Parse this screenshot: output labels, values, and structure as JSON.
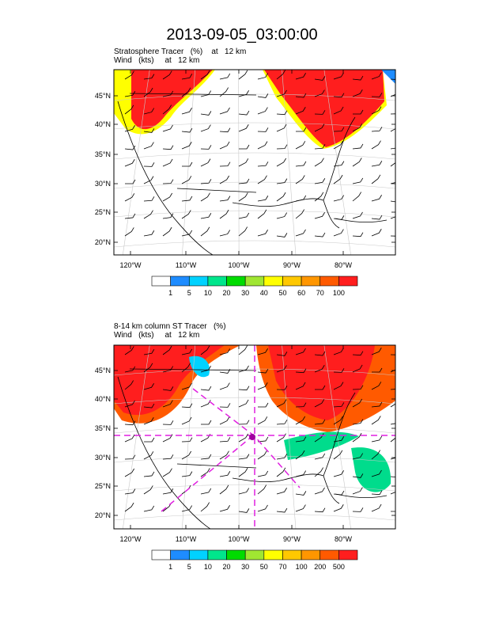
{
  "title": "2013-09-05_03:00:00",
  "colors": {
    "frame": "#000000",
    "grid": "#c8c8c8",
    "coast": "#000000",
    "barb": "#000000",
    "trop_line": "#e020e0"
  },
  "panels": [
    {
      "subtitle_line1": "Stratosphere Tracer   (%)    at   12 km",
      "subtitle_line2": "Wind   (kts)     at   12 km",
      "lat_labels": [
        "45°N",
        "40°N",
        "35°N",
        "30°N",
        "25°N",
        "20°N"
      ],
      "lon_labels": [
        "120°W",
        "110°W",
        "100°W",
        "90°W",
        "80°W"
      ],
      "colorbar_labels": [
        "1",
        "5",
        "10",
        "20",
        "30",
        "40",
        "50",
        "60",
        "70",
        "100"
      ],
      "colorbar_colors": [
        "#ffffff",
        "#1e8cff",
        "#00d2ff",
        "#00e68c",
        "#00dc00",
        "#a0e632",
        "#ffff00",
        "#ffc800",
        "#ff9600",
        "#ff5a00",
        "#ff1e1e"
      ]
    },
    {
      "subtitle_line1": "8-14 km column ST Tracer   (%)",
      "subtitle_line2": "Wind   (kts)     at   12 km",
      "lat_labels": [
        "45°N",
        "40°N",
        "35°N",
        "30°N",
        "25°N",
        "20°N"
      ],
      "lon_labels": [
        "120°W",
        "110°W",
        "100°W",
        "90°W",
        "80°W"
      ],
      "colorbar_labels": [
        "1",
        "5",
        "10",
        "20",
        "30",
        "50",
        "70",
        "100",
        "200",
        "500"
      ],
      "colorbar_colors": [
        "#ffffff",
        "#1e8cff",
        "#00d2ff",
        "#00e68c",
        "#00dc00",
        "#a0e632",
        "#ffff00",
        "#ffc800",
        "#ff9600",
        "#ff5a00",
        "#ff1e1e"
      ]
    }
  ]
}
